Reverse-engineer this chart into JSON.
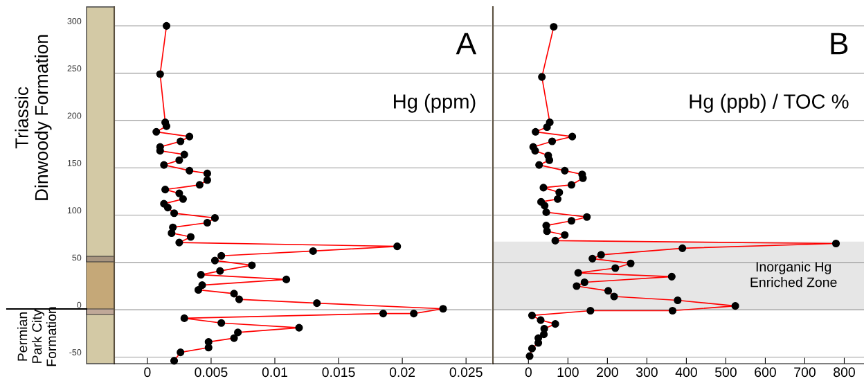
{
  "chart_data": [
    {
      "type": "line",
      "title": "A",
      "xlabel": "Hg (ppm)",
      "marker": "circle",
      "grid": "y",
      "annotations": [
        "Triassic\nDinwoody Formation",
        "Permian\nPark City\nFormation"
      ],
      "series": [
        {
          "color": "#ff0000",
          "x": [
            0.0015,
            0.001,
            0.0014,
            0.0015,
            0.0007,
            0.0033,
            0.0026,
            0.001,
            0.001,
            0.0029,
            0.0025,
            0.0013,
            0.0033,
            0.0047,
            0.0047,
            0.0041,
            0.0014,
            0.0025,
            0.0028,
            0.0013,
            0.0016,
            0.0021,
            0.0053,
            0.0047,
            0.002,
            0.0019,
            0.0034,
            0.0025,
            0.0196,
            0.013,
            0.0058,
            0.0053,
            0.0082,
            0.0057,
            0.0042,
            0.0109,
            0.0043,
            0.004,
            0.0068,
            0.0072,
            0.0133,
            0.0232,
            0.0209,
            0.0185,
            0.0029,
            0.0058,
            0.0119,
            0.0071,
            0.0068,
            0.0048,
            0.0048,
            0.0026,
            0.0021
          ],
          "values": [
            300,
            249,
            198,
            194,
            188,
            183,
            178,
            172,
            168,
            164,
            158,
            153,
            147,
            144,
            137,
            132,
            127,
            123,
            117,
            112,
            108,
            102,
            97,
            92,
            87,
            81,
            77,
            71,
            67,
            62,
            57,
            52,
            47,
            41,
            37,
            32,
            26,
            21,
            17,
            11,
            7,
            1,
            -4,
            -4,
            -9,
            -14,
            -19,
            -24,
            -30,
            -34,
            -40,
            -45,
            -54
          ]
        }
      ],
      "xlim": [
        -0.0026,
        0.027
      ],
      "xticks": [
        0,
        0.005,
        0.01,
        0.015,
        0.02,
        0.025
      ],
      "ylim": [
        -57,
        320
      ],
      "yticks": [
        -50,
        0,
        50,
        100,
        150,
        200,
        250,
        300
      ]
    },
    {
      "type": "line",
      "title": "B",
      "xlabel": "Hg (ppb) / TOC %",
      "marker": "circle",
      "grid": "y",
      "tick_labels": "x",
      "series": [
        {
          "color": "#ff0000",
          "x": [
            64,
            34,
            54,
            47,
            18,
            111,
            60,
            12,
            17,
            50,
            53,
            27,
            92,
            136,
            138,
            109,
            38,
            78,
            74,
            32,
            41,
            45,
            148,
            109,
            45,
            47,
            92,
            68,
            779,
            390,
            184,
            162,
            259,
            220,
            126,
            363,
            142,
            122,
            202,
            217,
            378,
            524,
            365,
            157,
            9,
            31,
            68,
            40,
            39,
            25,
            25,
            9,
            3
          ],
          "values": [
            299,
            246,
            198,
            193,
            188,
            183,
            178,
            172,
            168,
            163,
            158,
            153,
            147,
            143,
            139,
            132,
            129,
            124,
            117,
            114,
            110,
            103,
            98,
            94,
            89,
            83,
            79,
            73,
            70,
            65,
            58,
            54,
            49,
            44,
            39,
            35,
            29,
            25,
            20,
            14,
            10,
            4,
            -1,
            -1,
            -6,
            -11,
            -15,
            -20,
            -26,
            -30,
            -35,
            -41,
            -49
          ]
        }
      ],
      "xlim": [
        -90,
        850
      ],
      "xticks": [
        0,
        100,
        200,
        300,
        400,
        500,
        600,
        700,
        800
      ],
      "ylim": [
        -57,
        320
      ],
      "yticks": [
        -50,
        0,
        50,
        100,
        150,
        200,
        250,
        300
      ],
      "bands": [
        {
          "axis": "y",
          "from": 0,
          "to": 72,
          "label": "Inorganic Hg\nEnriched Zone",
          "color": "#e6e6e6"
        }
      ]
    }
  ]
}
